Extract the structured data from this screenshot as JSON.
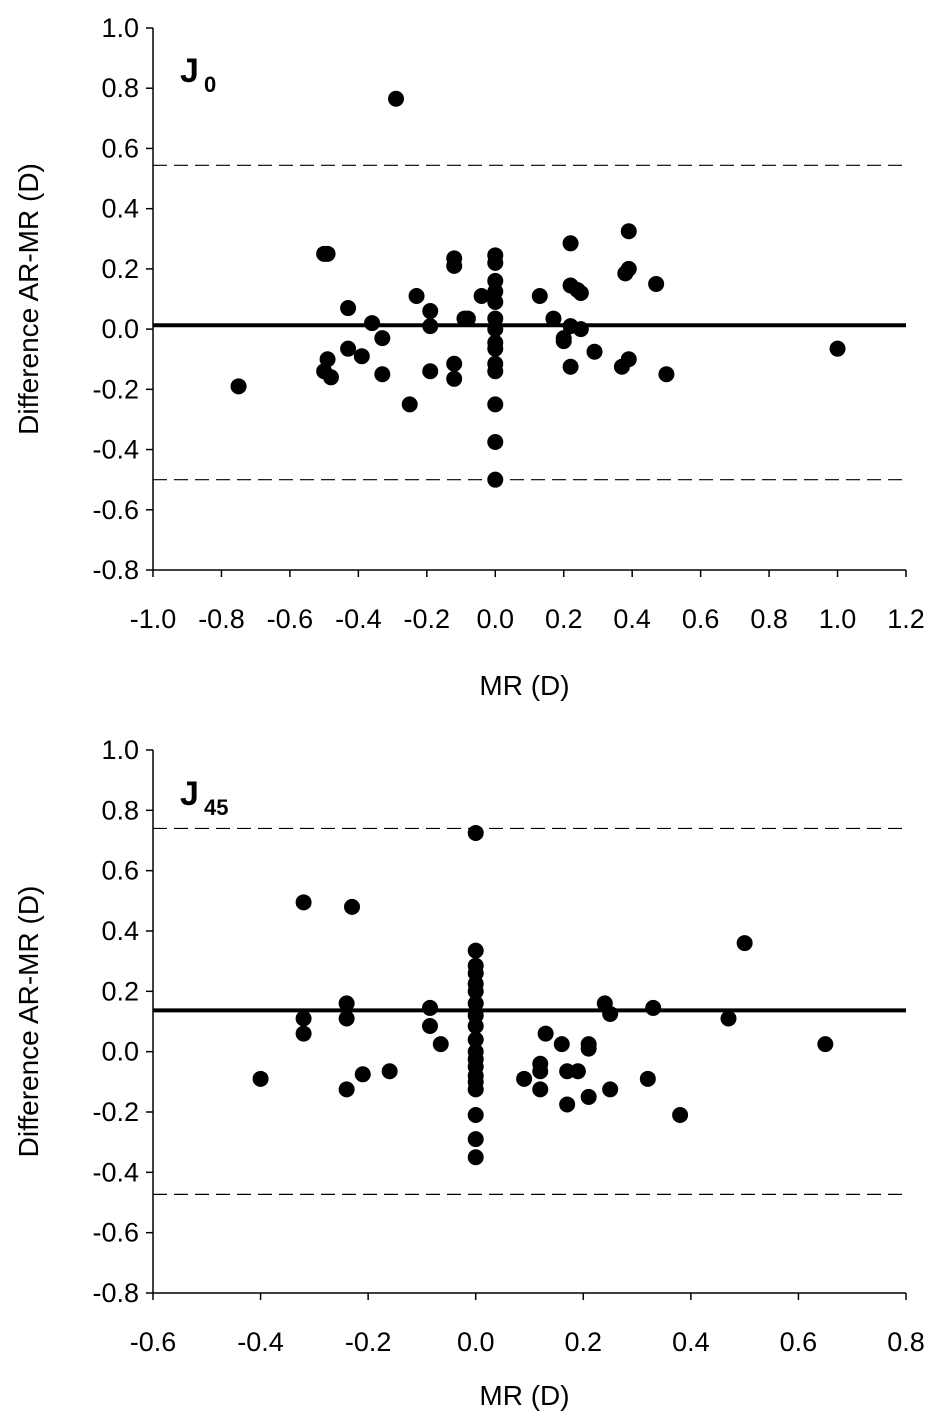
{
  "chart_data": [
    {
      "type": "scatter",
      "panel_label": "J",
      "panel_label_sub": "0",
      "xlabel": "MR (D)",
      "ylabel": "Difference AR-MR (D)",
      "xlim": [
        -1.0,
        1.2
      ],
      "ylim": [
        -0.8,
        1.0
      ],
      "x_ticks": [
        "-1.0",
        "-0.8",
        "-0.6",
        "-0.4",
        "-0.2",
        "0.0",
        "0.2",
        "0.4",
        "0.6",
        "0.8",
        "1.0",
        "1.2"
      ],
      "y_ticks": [
        "-0.8",
        "-0.6",
        "-0.4",
        "-0.2",
        "0.0",
        "0.2",
        "0.4",
        "0.6",
        "0.8",
        "1.0"
      ],
      "mean_line": 0.013,
      "limits_of_agreement": [
        0.544,
        -0.5
      ],
      "points": [
        [
          -0.75,
          -0.19
        ],
        [
          -0.5,
          0.25
        ],
        [
          -0.49,
          0.25
        ],
        [
          -0.5,
          -0.14
        ],
        [
          -0.49,
          -0.1
        ],
        [
          -0.48,
          -0.16
        ],
        [
          -0.43,
          0.07
        ],
        [
          -0.43,
          -0.065
        ],
        [
          -0.39,
          -0.09
        ],
        [
          -0.36,
          0.02
        ],
        [
          -0.33,
          -0.03
        ],
        [
          -0.33,
          -0.15
        ],
        [
          -0.29,
          0.765
        ],
        [
          -0.25,
          -0.25
        ],
        [
          -0.23,
          0.11
        ],
        [
          -0.19,
          0.06
        ],
        [
          -0.19,
          0.01
        ],
        [
          -0.19,
          -0.14
        ],
        [
          -0.12,
          0.235
        ],
        [
          -0.12,
          0.21
        ],
        [
          -0.12,
          -0.115
        ],
        [
          -0.12,
          -0.165
        ],
        [
          -0.09,
          0.035
        ],
        [
          -0.08,
          0.035
        ],
        [
          -0.04,
          0.11
        ],
        [
          0.0,
          0.245
        ],
        [
          0.0,
          0.22
        ],
        [
          0.0,
          0.16
        ],
        [
          0.0,
          0.125
        ],
        [
          0.0,
          0.09
        ],
        [
          0.0,
          0.035
        ],
        [
          0.0,
          0.0
        ],
        [
          0.0,
          -0.045
        ],
        [
          0.0,
          -0.065
        ],
        [
          0.0,
          -0.115
        ],
        [
          0.0,
          -0.14
        ],
        [
          0.0,
          -0.25
        ],
        [
          0.0,
          -0.375
        ],
        [
          0.0,
          -0.5
        ],
        [
          0.13,
          0.11
        ],
        [
          0.17,
          0.035
        ],
        [
          0.2,
          -0.03
        ],
        [
          0.2,
          -0.04
        ],
        [
          0.22,
          0.285
        ],
        [
          0.22,
          0.145
        ],
        [
          0.22,
          0.01
        ],
        [
          0.22,
          -0.125
        ],
        [
          0.24,
          0.13
        ],
        [
          0.25,
          0.12
        ],
        [
          0.25,
          0.0
        ],
        [
          0.29,
          -0.075
        ],
        [
          0.37,
          -0.125
        ],
        [
          0.38,
          0.185
        ],
        [
          0.39,
          0.2
        ],
        [
          0.39,
          0.325
        ],
        [
          0.39,
          -0.1
        ],
        [
          0.47,
          0.15
        ],
        [
          0.5,
          -0.15
        ],
        [
          1.0,
          -0.065
        ]
      ]
    },
    {
      "type": "scatter",
      "panel_label": "J",
      "panel_label_sub": "45",
      "xlabel": "MR (D)",
      "ylabel": "Difference AR-MR (D)",
      "xlim": [
        -0.6,
        0.8
      ],
      "ylim": [
        -0.8,
        1.0
      ],
      "x_ticks": [
        "-0.6",
        "-0.4",
        "-0.2",
        "0.0",
        "0.2",
        "0.4",
        "0.6",
        "0.8"
      ],
      "y_ticks": [
        "-0.8",
        "-0.6",
        "-0.4",
        "-0.2",
        "0.0",
        "0.2",
        "0.4",
        "0.6",
        "0.8",
        "1.0"
      ],
      "mean_line": 0.137,
      "limits_of_agreement": [
        0.74,
        -0.473
      ],
      "points": [
        [
          -0.4,
          -0.09
        ],
        [
          -0.32,
          0.495
        ],
        [
          -0.32,
          0.11
        ],
        [
          -0.32,
          0.06
        ],
        [
          -0.24,
          0.16
        ],
        [
          -0.24,
          0.11
        ],
        [
          -0.24,
          -0.125
        ],
        [
          -0.23,
          0.48
        ],
        [
          -0.21,
          -0.075
        ],
        [
          -0.16,
          -0.065
        ],
        [
          -0.085,
          0.145
        ],
        [
          -0.085,
          0.085
        ],
        [
          -0.065,
          0.025
        ],
        [
          0.0,
          0.725
        ],
        [
          0.0,
          0.335
        ],
        [
          0.0,
          0.285
        ],
        [
          0.0,
          0.26
        ],
        [
          0.0,
          0.225
        ],
        [
          0.0,
          0.2
        ],
        [
          0.0,
          0.16
        ],
        [
          0.0,
          0.12
        ],
        [
          0.0,
          0.085
        ],
        [
          0.0,
          0.04
        ],
        [
          0.0,
          0.0
        ],
        [
          0.0,
          -0.025
        ],
        [
          0.0,
          -0.05
        ],
        [
          0.0,
          -0.08
        ],
        [
          0.0,
          -0.1
        ],
        [
          0.0,
          -0.125
        ],
        [
          0.0,
          -0.21
        ],
        [
          0.0,
          -0.29
        ],
        [
          0.0,
          -0.35
        ],
        [
          0.09,
          -0.09
        ],
        [
          0.12,
          -0.04
        ],
        [
          0.12,
          -0.065
        ],
        [
          0.12,
          -0.125
        ],
        [
          0.13,
          0.06
        ],
        [
          0.16,
          0.025
        ],
        [
          0.17,
          -0.065
        ],
        [
          0.17,
          -0.175
        ],
        [
          0.19,
          -0.065
        ],
        [
          0.21,
          0.025
        ],
        [
          0.21,
          0.01
        ],
        [
          0.21,
          -0.15
        ],
        [
          0.24,
          0.16
        ],
        [
          0.25,
          0.125
        ],
        [
          0.25,
          -0.125
        ],
        [
          0.32,
          -0.09
        ],
        [
          0.33,
          0.145
        ],
        [
          0.38,
          -0.21
        ],
        [
          0.47,
          0.11
        ],
        [
          0.5,
          0.36
        ],
        [
          0.65,
          0.025
        ]
      ]
    }
  ]
}
